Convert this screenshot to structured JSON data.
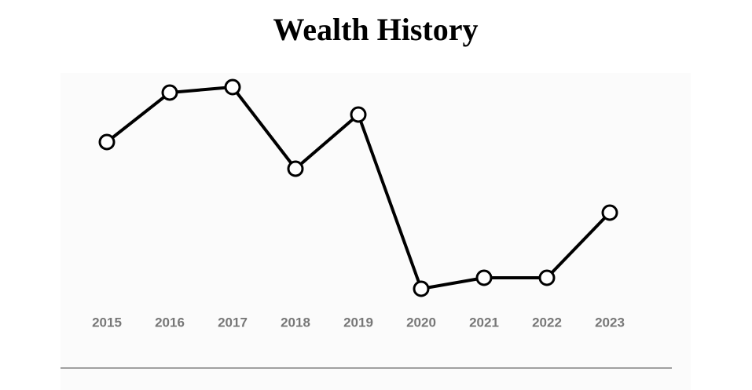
{
  "chart_data": {
    "type": "line",
    "title": "Wealth History",
    "categories": [
      "2015",
      "2016",
      "2017",
      "2018",
      "2019",
      "2020",
      "2021",
      "2022",
      "2023"
    ],
    "values": [
      219,
      282,
      289,
      185,
      254,
      32,
      46,
      46,
      129
    ],
    "color": "#000000"
  }
}
